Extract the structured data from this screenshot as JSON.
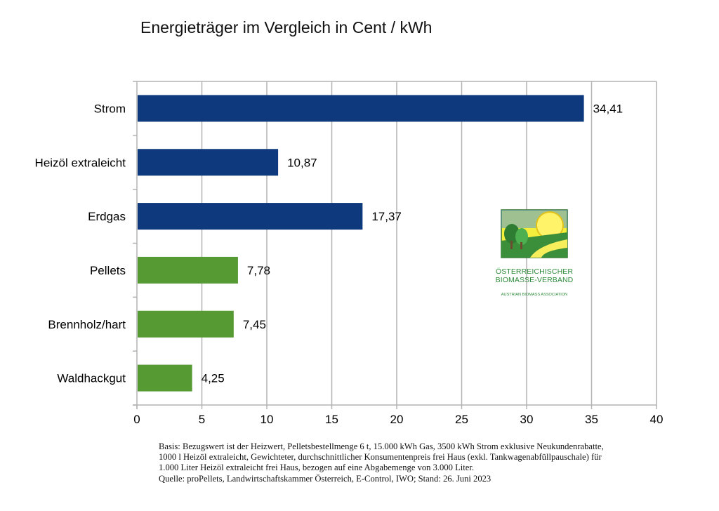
{
  "chart_data": {
    "type": "bar",
    "orientation": "horizontal",
    "title": "Energieträger im Vergleich in Cent / kWh",
    "categories": [
      "Strom",
      "Heizöl extraleicht",
      "Erdgas",
      "Pellets",
      "Brennholz/hart",
      "Waldhackgut"
    ],
    "values": [
      34.41,
      10.87,
      17.37,
      7.78,
      7.45,
      4.25
    ],
    "value_labels": [
      "34,41",
      "10,87",
      "17,37",
      "7,78",
      "7,45",
      "4,25"
    ],
    "bar_colors": [
      "#0e3a7d",
      "#0e3a7d",
      "#0e3a7d",
      "#569a34",
      "#569a34",
      "#569a34"
    ],
    "xlim": [
      0,
      40
    ],
    "xticks": [
      0,
      5,
      10,
      15,
      20,
      25,
      30,
      35,
      40
    ],
    "xlabel": "",
    "ylabel": "",
    "grid": "vertical",
    "legend": "none"
  },
  "logo": {
    "line1": "Österreichischer",
    "line2": "Biomasse-Verband",
    "subtitle": "Austrian Biomass Association"
  },
  "notes": [
    "Basis: Bezugswert ist der Heizwert, Pelletsbestellmenge 6 t, 15.000 kWh Gas, 3500 kWh Strom exklusive Neukundenrabatte,",
    "1000 l Heizöl extraleicht, Gewichteter, durchschnittlicher Konsumentenpreis frei Haus (exkl. Tankwagenabfüllpauschale) für",
    "1.000 Liter Heizöl extraleicht frei Haus, bezogen auf eine Abgabemenge von 3.000 Liter.",
    "Quelle: proPellets, Landwirtschaftskammer Österreich, E-Control, IWO; Stand: 26. Juni 2023"
  ]
}
